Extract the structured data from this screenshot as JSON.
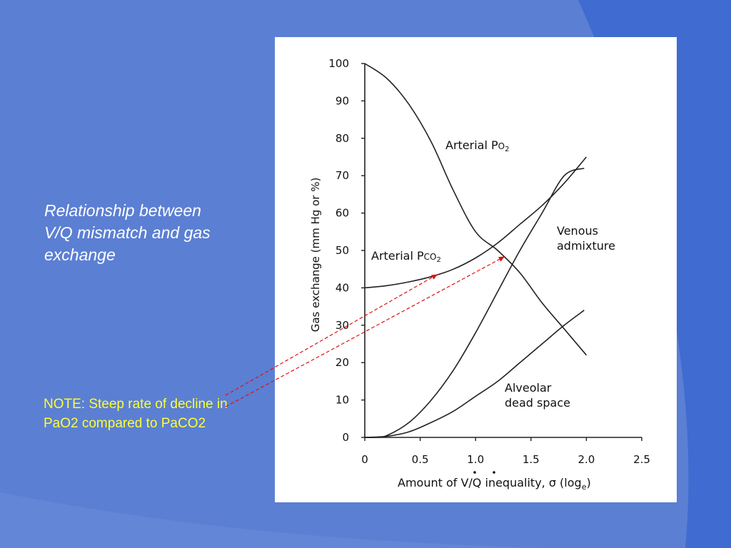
{
  "slide": {
    "title": "Relationship between V/Q mismatch and gas exchange",
    "note": "NOTE: Steep rate of decline in PaO2 compared to PaCO2",
    "colors": {
      "background": "#5b7fd3",
      "corner_accent": "#3c67cf",
      "note_text": "#ffff33",
      "arrow": "#e01010"
    }
  },
  "chart_data": {
    "type": "line",
    "xlabel_prefix": "Amount of ",
    "xlabel_vq": "V/Q",
    "xlabel_suffix": " inequality, σ (log",
    "xlabel_sub": "e",
    "xlabel_close": ")",
    "ylabel": "Gas exchange (mm Hg or %)",
    "xlim": [
      0,
      2.5
    ],
    "ylim": [
      0,
      100
    ],
    "xticks": [
      "0",
      "0.5",
      "1.0",
      "1.5",
      "2.0",
      "2.5"
    ],
    "yticks": [
      "0",
      "10",
      "20",
      "30",
      "40",
      "50",
      "60",
      "70",
      "80",
      "90",
      "100"
    ],
    "grid": false,
    "series": [
      {
        "name": "Arterial PO2",
        "label_main": "Arterial P",
        "label_sub": "O",
        "label_sub2": "2",
        "x": [
          0,
          0.2,
          0.4,
          0.6,
          0.8,
          1.0,
          1.2,
          1.4,
          1.6,
          1.8,
          2.0
        ],
        "y": [
          100,
          96,
          89,
          79,
          66,
          55,
          50,
          44,
          36,
          29,
          22
        ]
      },
      {
        "name": "Arterial PCO2",
        "label_main": "Arterial P",
        "label_sub": "CO",
        "label_sub2": "2",
        "x": [
          0,
          0.2,
          0.4,
          0.6,
          0.8,
          1.0,
          1.2,
          1.4,
          1.6,
          1.8,
          2.0
        ],
        "y": [
          40,
          40.6,
          41.6,
          43,
          45,
          48,
          52,
          57,
          62,
          68,
          75
        ]
      },
      {
        "name": "Venous admixture",
        "label_lines": [
          "Venous",
          "admixture"
        ],
        "x": [
          0,
          0.1,
          0.2,
          0.4,
          0.6,
          0.8,
          1.0,
          1.2,
          1.4,
          1.6,
          1.8,
          1.98
        ],
        "y": [
          0,
          0,
          0.5,
          4,
          10,
          18,
          28,
          39,
          50,
          60,
          70,
          72
        ]
      },
      {
        "name": "Alveolar dead space",
        "label_lines": [
          "Alveolar",
          "dead space"
        ],
        "x": [
          0,
          0.2,
          0.4,
          0.6,
          0.8,
          1.0,
          1.2,
          1.4,
          1.6,
          1.8,
          1.98
        ],
        "y": [
          0,
          0.3,
          1.5,
          4,
          7,
          11,
          15,
          20,
          25,
          30,
          34
        ]
      }
    ]
  }
}
